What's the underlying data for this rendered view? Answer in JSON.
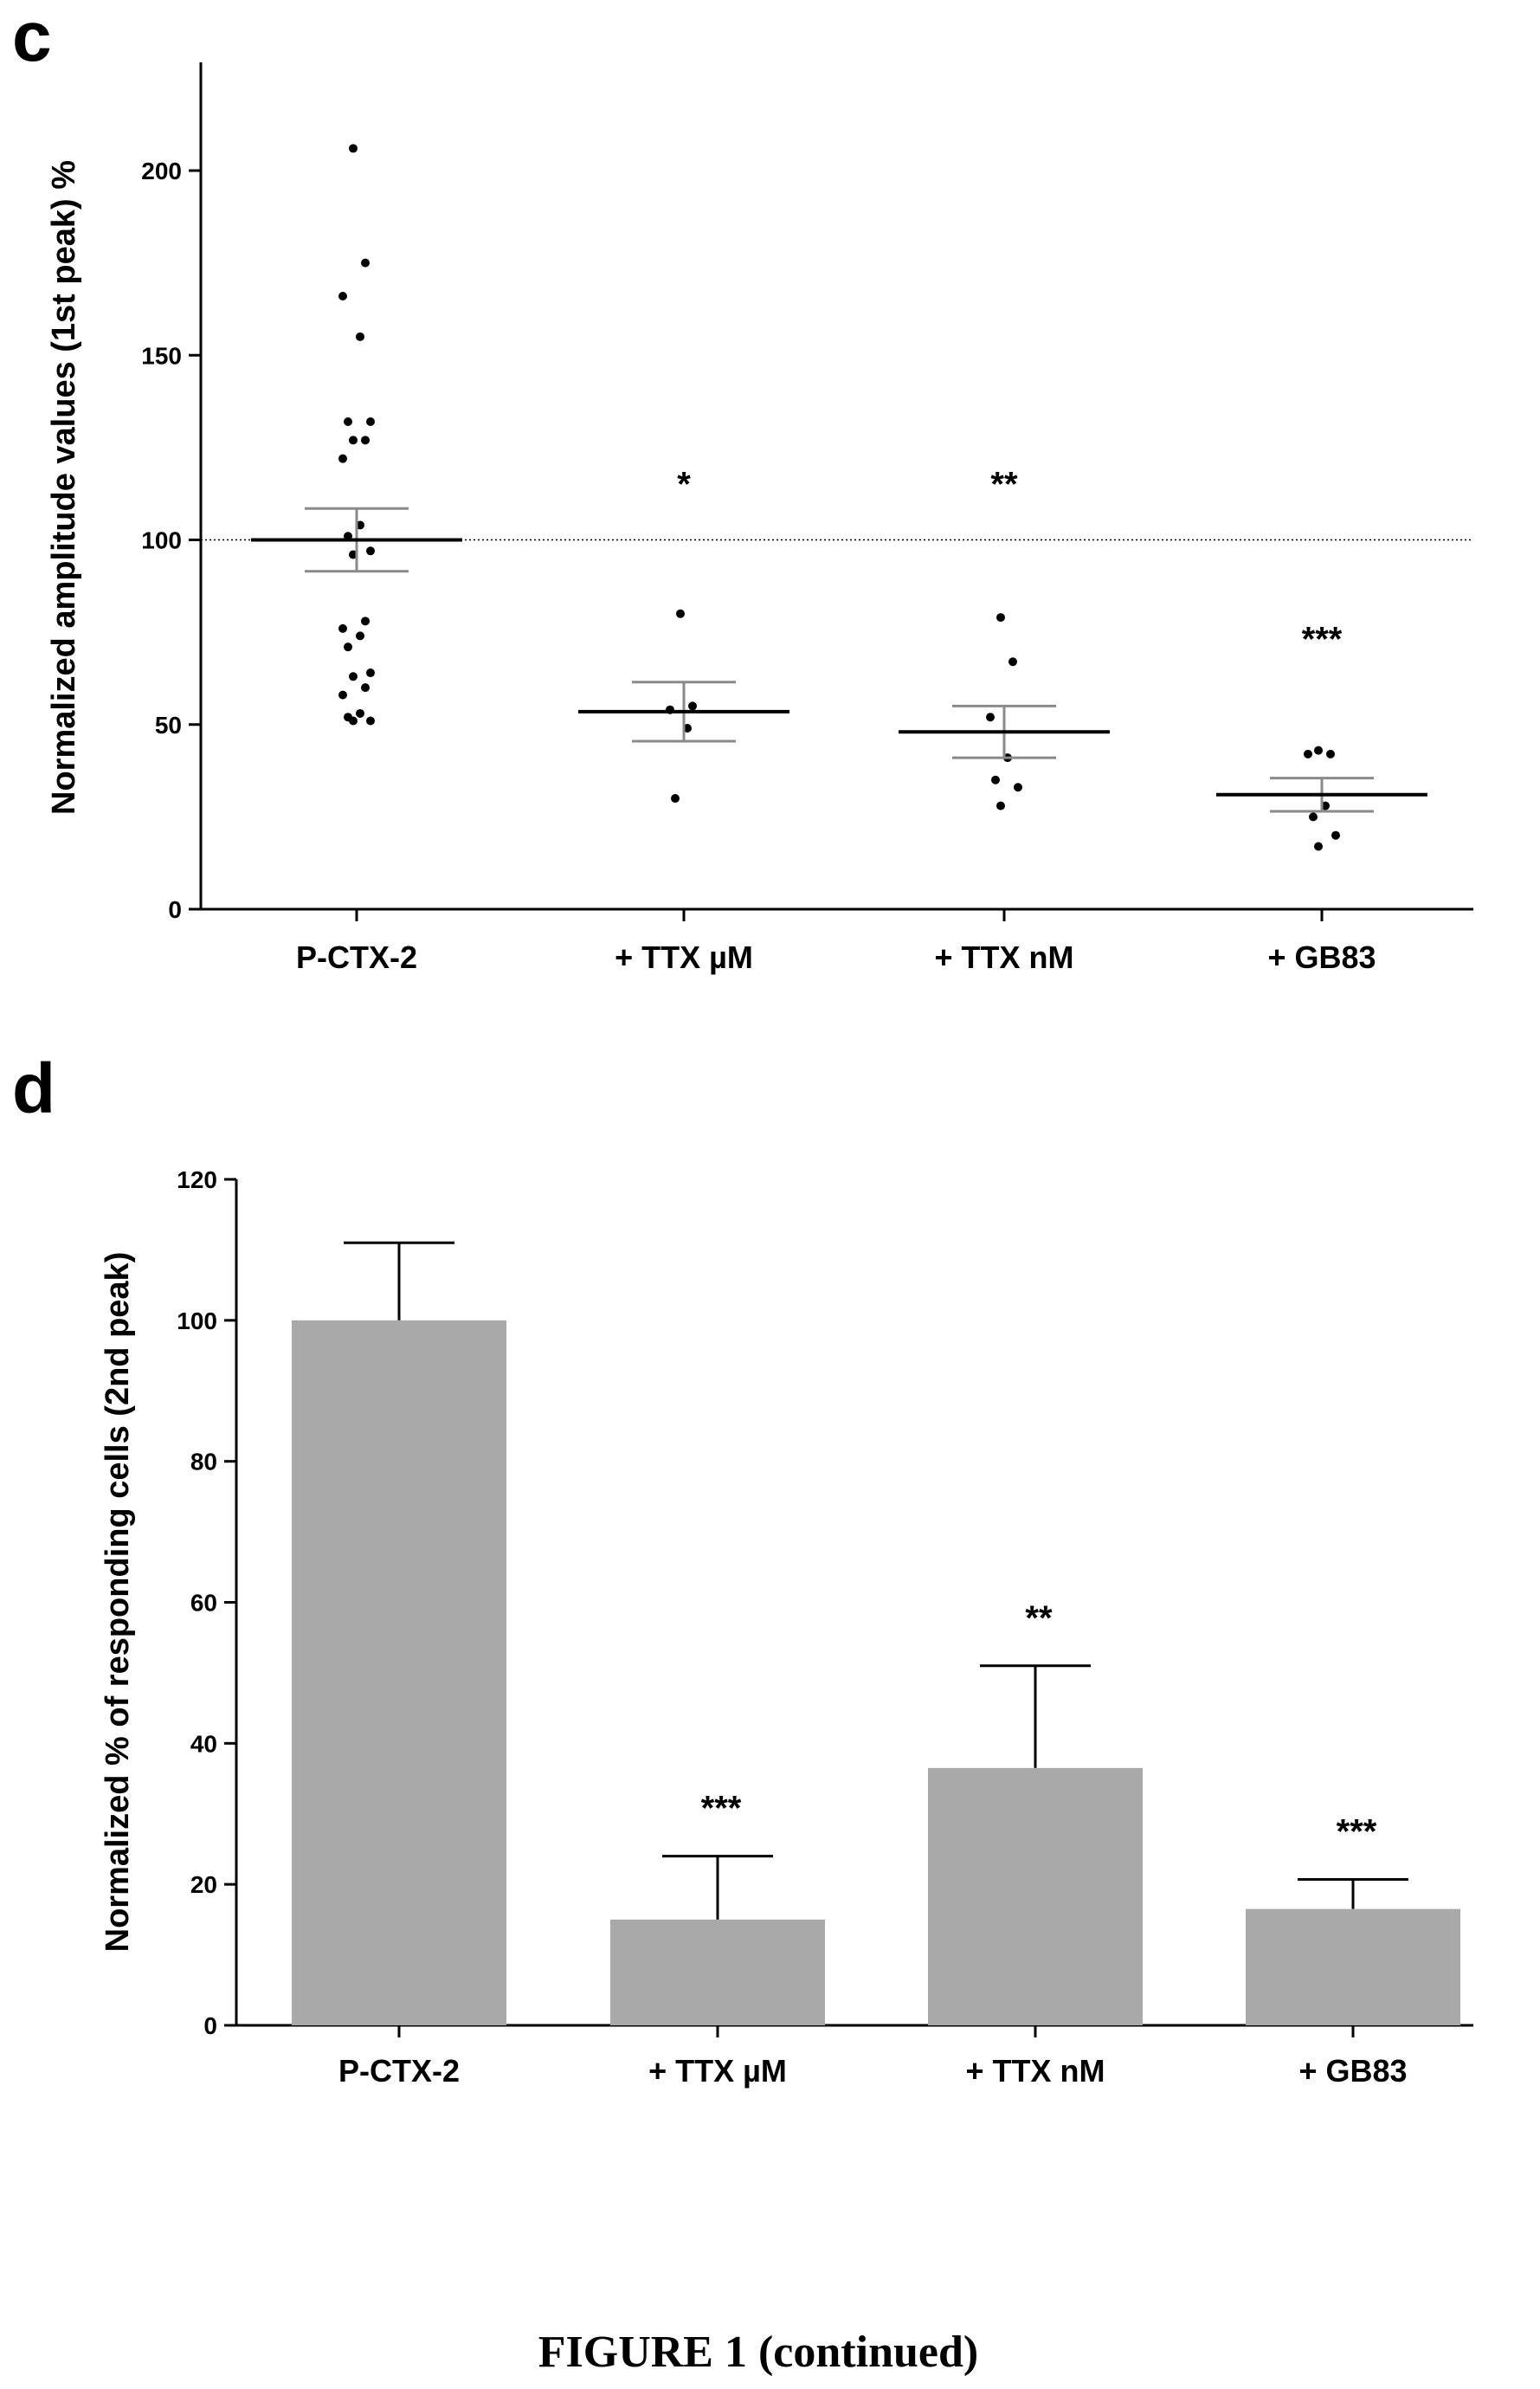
{
  "figure_caption": "FIGURE 1 (continued)",
  "chart_data": [
    {
      "panel": "c",
      "type": "scatter",
      "ylabel": "Normalized amplitude values (1st peak) %",
      "xlabel": "",
      "categories": [
        "P-CTX-2",
        "+ TTX µM",
        "+ TTX nM",
        "+ GB83"
      ],
      "ylim": [
        0,
        230
      ],
      "yticks": [
        0,
        50,
        100,
        150,
        200
      ],
      "reference_line": 100,
      "grid": false,
      "points": [
        [
          206,
          175,
          166,
          155,
          132,
          132,
          127,
          127,
          122,
          104,
          101,
          97,
          96,
          78,
          76,
          74,
          71,
          64,
          63,
          60,
          58,
          53,
          52,
          51,
          51
        ],
        [
          80,
          55,
          54,
          49,
          30
        ],
        [
          79,
          67,
          52,
          41,
          35,
          33,
          28
        ],
        [
          43,
          42,
          42,
          28,
          25,
          20,
          17
        ]
      ],
      "means": [
        100,
        53.5,
        48,
        31
      ],
      "sem": [
        8.5,
        8,
        7,
        4.5
      ],
      "significance": [
        "",
        "*",
        "**",
        "***"
      ]
    },
    {
      "panel": "d",
      "type": "bar",
      "ylabel": "Normalized % of responding cells (2nd peak)",
      "xlabel": "",
      "categories": [
        "P-CTX-2",
        "+ TTX µM",
        "+ TTX nM",
        "+ GB83"
      ],
      "ylim": [
        0,
        120
      ],
      "yticks": [
        0,
        20,
        40,
        60,
        80,
        100,
        120
      ],
      "values": [
        100,
        15,
        36.5,
        16.5
      ],
      "error_upper": [
        111,
        24,
        51,
        20.7
      ],
      "significance": [
        "",
        "***",
        "**",
        "***"
      ],
      "bar_color": "#a9a9a9",
      "grid": false
    }
  ]
}
